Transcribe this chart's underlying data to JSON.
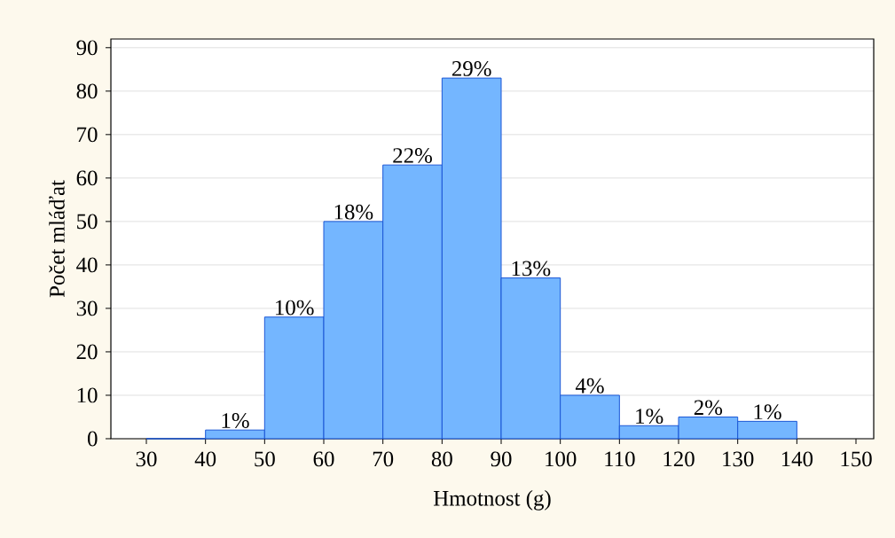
{
  "chart_data": {
    "type": "histogram",
    "xlabel": "Hmotnost (g)",
    "ylabel": "Počet mláďat",
    "bins": [
      30,
      40,
      50,
      60,
      70,
      80,
      90,
      100,
      110,
      120,
      130,
      140
    ],
    "values": [
      0,
      2,
      28,
      50,
      63,
      83,
      37,
      10,
      3,
      5,
      4
    ],
    "annotations": [
      {
        "text": "1%",
        "x": 45,
        "y": 2
      },
      {
        "text": "10%",
        "x": 55,
        "y": 28
      },
      {
        "text": "18%",
        "x": 65,
        "y": 50
      },
      {
        "text": "22%",
        "x": 75,
        "y": 63
      },
      {
        "text": "29%",
        "x": 85,
        "y": 83
      },
      {
        "text": "13%",
        "x": 95,
        "y": 37
      },
      {
        "text": "4%",
        "x": 105,
        "y": 10
      },
      {
        "text": "1%",
        "x": 115,
        "y": 3
      },
      {
        "text": "2%",
        "x": 125,
        "y": 5
      },
      {
        "text": "1%",
        "x": 135,
        "y": 4
      }
    ],
    "color": "#74b6ff",
    "xlim": [
      24,
      153
    ],
    "ylim": [
      0,
      92
    ],
    "xticks": [
      30,
      40,
      50,
      60,
      70,
      80,
      90,
      100,
      110,
      120,
      130,
      140,
      150
    ],
    "yticks": [
      0,
      10,
      20,
      30,
      40,
      50,
      60,
      70,
      80,
      90
    ],
    "grid": "y"
  }
}
